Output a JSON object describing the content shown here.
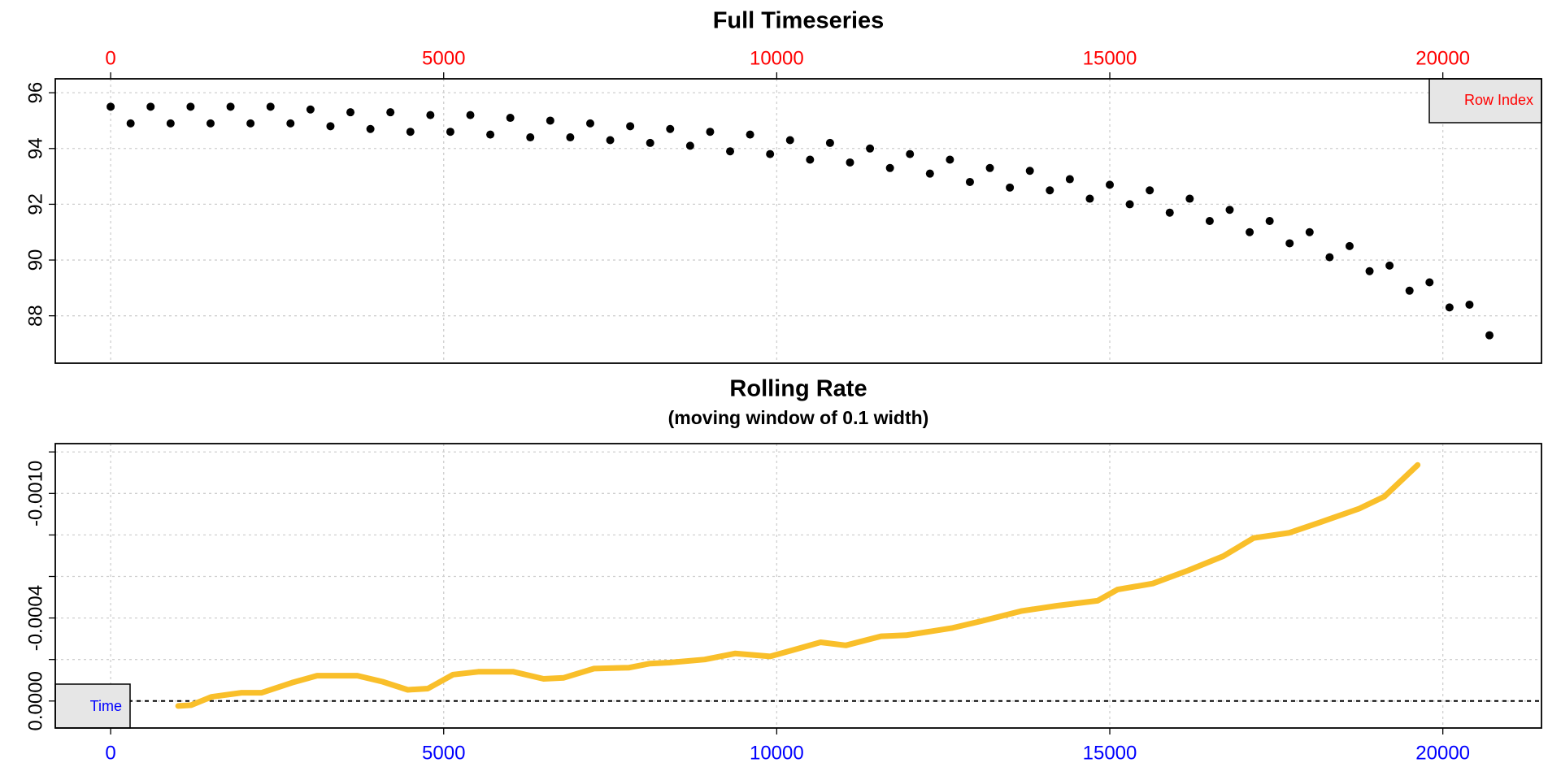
{
  "chart_data": [
    {
      "type": "scatter",
      "title": "Full Timeseries",
      "xlabel": "Row Index",
      "xlabel_corner": "top-right",
      "xaxis_position": "top",
      "xtick_color": "#ff0000",
      "color": "#000000",
      "grid": true,
      "x": [
        0,
        300,
        600,
        900,
        1200,
        1500,
        1800,
        2100,
        2400,
        2700,
        3000,
        3300,
        3600,
        3900,
        4200,
        4500,
        4800,
        5100,
        5400,
        5700,
        6000,
        6300,
        6600,
        6900,
        7200,
        7500,
        7800,
        8100,
        8400,
        8700,
        9000,
        9300,
        9600,
        9900,
        10200,
        10500,
        10800,
        11100,
        11400,
        11700,
        12000,
        12300,
        12600,
        12900,
        13200,
        13500,
        13800,
        14100,
        14400,
        14700,
        15000,
        15300,
        15600,
        15900,
        16200,
        16500,
        16800,
        17100,
        17400,
        17700,
        18000,
        18300,
        18600,
        18900,
        19200,
        19500,
        19800,
        20100,
        20400,
        20700
      ],
      "values": [
        95.5,
        94.9,
        95.5,
        94.9,
        95.5,
        94.9,
        95.5,
        94.9,
        95.5,
        94.9,
        95.4,
        94.8,
        95.3,
        94.7,
        95.3,
        94.6,
        95.2,
        94.6,
        95.2,
        94.5,
        95.1,
        94.4,
        95.0,
        94.4,
        94.9,
        94.3,
        94.8,
        94.2,
        94.7,
        94.1,
        94.6,
        93.9,
        94.5,
        93.8,
        94.3,
        93.6,
        94.2,
        93.5,
        94.0,
        93.3,
        93.8,
        93.1,
        93.6,
        92.8,
        93.3,
        92.6,
        93.2,
        92.5,
        92.9,
        92.2,
        92.7,
        92.0,
        92.5,
        91.7,
        92.2,
        91.4,
        91.8,
        91.0,
        91.4,
        90.6,
        91.0,
        90.1,
        90.5,
        89.6,
        89.8,
        88.9,
        89.2,
        88.3,
        88.4,
        87.3
      ],
      "xlim": [
        -831,
        21481
      ],
      "xticks": [
        0,
        5000,
        10000,
        15000,
        20000
      ],
      "ylim": [
        86.3,
        96.5
      ],
      "yticks": [
        88,
        90,
        92,
        94,
        96
      ]
    },
    {
      "type": "line",
      "title": "Rolling Rate",
      "subtitle": "(moving window of 0.1 width)",
      "xlabel": "Time",
      "xlabel_corner": "bottom-left",
      "xaxis_position": "bottom",
      "xtick_color": "#0000ff",
      "color": "#f9bf2a",
      "grid": true,
      "hline": 0,
      "x": [
        1013,
        1209,
        1512,
        1965,
        2268,
        2721,
        3099,
        3704,
        4082,
        4460,
        4762,
        5140,
        5518,
        6047,
        6500,
        6803,
        7256,
        7785,
        8088,
        8390,
        8919,
        9373,
        9902,
        10280,
        10658,
        11036,
        11565,
        11943,
        12623,
        13076,
        13681,
        14210,
        14815,
        15117,
        15646,
        16175,
        16704,
        17158,
        17687,
        18141,
        18745,
        19123,
        19622
      ],
      "values": [
        2.4e-05,
        2e-05,
        -2e-05,
        -4e-05,
        -4e-05,
        -8.8e-05,
        -0.000122,
        -0.000122,
        -9.3e-05,
        -5.4e-05,
        -6e-05,
        -0.000127,
        -0.000141,
        -0.000141,
        -0.000107,
        -0.000112,
        -0.000156,
        -0.000161,
        -0.00018,
        -0.000185,
        -0.0002,
        -0.000229,
        -0.000215,
        -0.000249,
        -0.000283,
        -0.000268,
        -0.000312,
        -0.000317,
        -0.000351,
        -0.000385,
        -0.000434,
        -0.000459,
        -0.000483,
        -0.000537,
        -0.000566,
        -0.000629,
        -0.000698,
        -0.000785,
        -0.00081,
        -0.000859,
        -0.000927,
        -0.000985,
        -0.001137
      ],
      "xlim": [
        -831,
        21481
      ],
      "xticks": [
        0,
        5000,
        10000,
        15000,
        20000
      ],
      "ylim": [
        0.00013,
        -0.00124
      ],
      "yticks": [
        {
          "value": 0,
          "label": "0.0000"
        },
        {
          "value": -0.0004,
          "label": "-0.0004"
        },
        {
          "value": -0.001,
          "label": "-0.0010"
        }
      ],
      "yminorticks": [
        -0.0002,
        -0.0006,
        -0.0008,
        -0.0012
      ]
    }
  ]
}
